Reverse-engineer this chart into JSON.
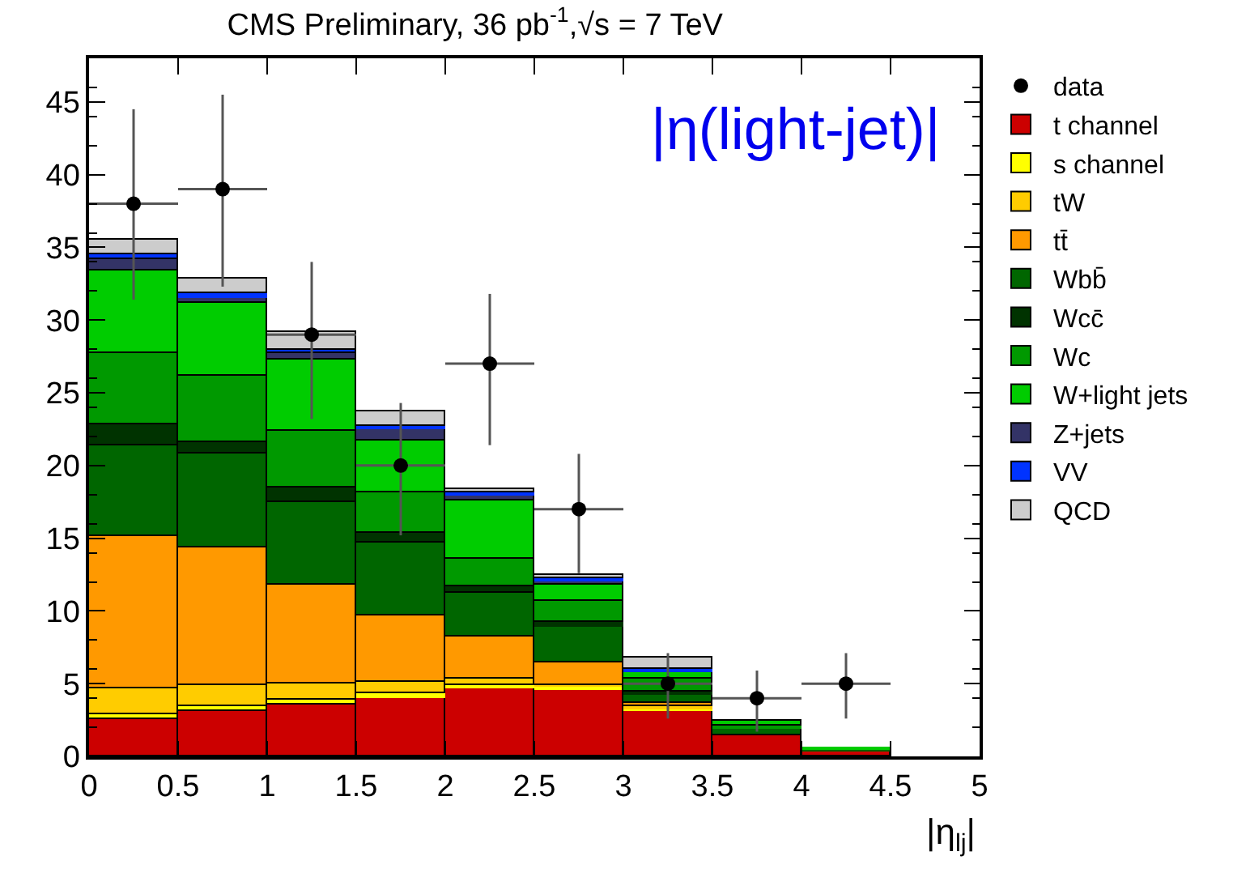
{
  "chart_data": {
    "type": "bar",
    "title": "CMS Preliminary, 36 pb$^{-1}$,√s = 7 TeV",
    "xlabel": "|η$_{lj}$|",
    "annotations": [
      "|η(light-jet)|"
    ],
    "x": [
      0.25,
      0.75,
      1.25,
      1.75,
      2.25,
      2.75,
      3.25,
      3.75,
      4.25,
      4.75
    ],
    "stacked": true,
    "series": [
      {
        "name": "data",
        "type": "scatter",
        "color": "#000000",
        "x": [
          0.25,
          0.75,
          1.25,
          1.75,
          2.25,
          2.75,
          3.25,
          3.75,
          4.25
        ],
        "values": [
          38,
          39,
          29,
          20,
          27,
          17,
          5,
          4,
          5
        ],
        "errors": [
          [
            31.4,
            44.5
          ],
          [
            32.3,
            45.5
          ],
          [
            23.2,
            34.0
          ],
          [
            15.2,
            24.3
          ],
          [
            21.4,
            31.8
          ],
          [
            12.6,
            20.8
          ],
          [
            2.6,
            7.1
          ],
          [
            1.7,
            5.9
          ],
          [
            2.6,
            7.1
          ]
        ],
        "xerrors": [
          0.25,
          0.25,
          0.25,
          0.25,
          0.25,
          0.25,
          0.25,
          0.25,
          0.25
        ]
      },
      {
        "name": "t channel",
        "color": "#cc0000",
        "values": [
          2.6,
          3.1,
          3.6,
          4.1,
          4.7,
          4.6,
          3.2,
          1.4,
          0.4,
          0
        ]
      },
      {
        "name": "s channel",
        "color": "#ffff00",
        "values": [
          0.3,
          0.3,
          0.3,
          0.2,
          0.2,
          0.2,
          0.1,
          0,
          0,
          0
        ]
      },
      {
        "name": "tW",
        "color": "#ffcc00",
        "values": [
          1.8,
          1.5,
          1.1,
          0.8,
          0.4,
          0.1,
          0.1,
          0,
          0,
          0
        ]
      },
      {
        "name": "tt̄",
        "color": "#ff9900",
        "values": [
          10.5,
          9.5,
          6.8,
          4.6,
          2.9,
          1.6,
          0.3,
          null,
          0,
          0
        ]
      },
      {
        "name": "Wbb̄",
        "color": "#006600",
        "values": [
          6.2,
          6.4,
          5.7,
          5.0,
          3.0,
          2.5,
          0.6,
          0.5,
          0.1,
          0
        ]
      },
      {
        "name": "Wcc̄",
        "color": "#003300",
        "values": [
          1.4,
          0.8,
          1.0,
          0.7,
          0.5,
          0.2,
          0.2,
          null,
          0,
          0
        ]
      },
      {
        "name": "Wc",
        "color": "#009900",
        "values": [
          4.9,
          4.6,
          3.9,
          2.7,
          1.9,
          1.5,
          0.8,
          0.2,
          0,
          0
        ]
      },
      {
        "name": "W+light jets",
        "color": "#00cc00",
        "values": [
          5.7,
          5.0,
          4.9,
          3.6,
          4.0,
          1.1,
          0.5,
          0.3,
          0.1,
          0
        ]
      },
      {
        "name": "Z+jets",
        "color": "#333366",
        "values": [
          0.8,
          0.4,
          0.4,
          0.9,
          0.4,
          0.3,
          0.1,
          0,
          0,
          0
        ]
      },
      {
        "name": "VV",
        "color": "#0033ff",
        "values": [
          0.3,
          0.2,
          0.3,
          0.1,
          0.1,
          0.1,
          0.1,
          0,
          0,
          0
        ]
      },
      {
        "name": "QCD",
        "color": "#cccccc",
        "values": [
          1.0,
          1.0,
          1.2,
          1.0,
          0.3,
          0.3,
          0.8,
          0,
          0,
          0
        ]
      }
    ],
    "xlim": [
      0,
      5
    ],
    "xticks": [
      0,
      0.5,
      1,
      1.5,
      2,
      2.5,
      3,
      3.5,
      4,
      4.5,
      5
    ],
    "ylim": [
      0,
      48
    ],
    "yticks": [
      0,
      5,
      10,
      15,
      20,
      25,
      30,
      35,
      40,
      45
    ],
    "legend": "right",
    "marker": "circle"
  }
}
